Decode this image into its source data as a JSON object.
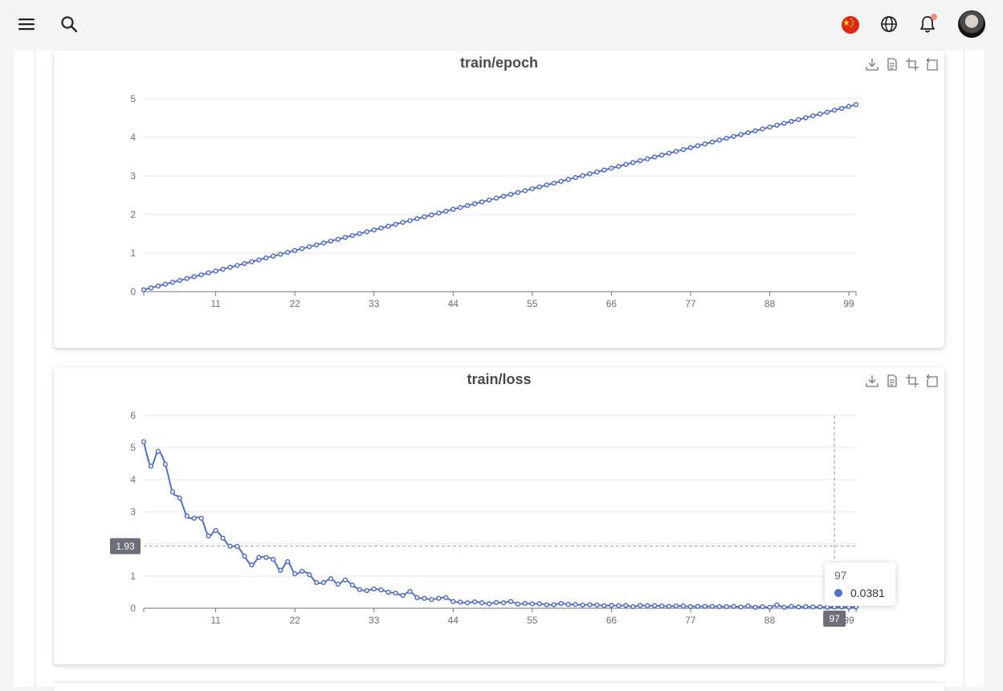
{
  "colors": {
    "series": "#5470c6",
    "axis": "#6e7079",
    "grid": "#e0e6f1"
  },
  "topbar": {
    "icons": [
      "menu-icon",
      "search-icon",
      "china-flag-icon",
      "globe-icon",
      "bell-icon"
    ]
  },
  "tooltip": {
    "x": "97",
    "value": "0.0381"
  },
  "crosshair": {
    "y_label": "1.93",
    "x_label": "97"
  },
  "chart_data": [
    {
      "type": "line",
      "title": "train/epoch",
      "xlim": [
        1,
        100
      ],
      "xticks": [
        11,
        22,
        33,
        44,
        55,
        66,
        77,
        88,
        99
      ],
      "ylim": [
        0,
        5
      ],
      "yticks": [
        0,
        1,
        2,
        3,
        4,
        5
      ],
      "grid": true,
      "series": [
        {
          "x": [
            1,
            100
          ],
          "values": [
            0.05,
            4.85
          ],
          "x_step": 1
        }
      ]
    },
    {
      "type": "line",
      "title": "train/loss",
      "xlim": [
        1,
        100
      ],
      "xticks": [
        11,
        22,
        33,
        44,
        55,
        66,
        77,
        88,
        99
      ],
      "ylim": [
        0,
        6
      ],
      "yticks": [
        0,
        1,
        2,
        3,
        4,
        5,
        6
      ],
      "grid": true,
      "series": [
        {
          "x_start": 1,
          "x_step": 1,
          "values": [
            5.18,
            4.42,
            4.88,
            4.48,
            3.62,
            3.43,
            2.87,
            2.8,
            2.8,
            2.25,
            2.42,
            2.18,
            1.93,
            1.92,
            1.62,
            1.35,
            1.58,
            1.58,
            1.52,
            1.18,
            1.45,
            1.07,
            1.15,
            1.05,
            0.8,
            0.8,
            0.92,
            0.75,
            0.88,
            0.72,
            0.58,
            0.55,
            0.6,
            0.57,
            0.5,
            0.47,
            0.4,
            0.52,
            0.33,
            0.31,
            0.27,
            0.31,
            0.33,
            0.21,
            0.19,
            0.17,
            0.2,
            0.17,
            0.14,
            0.18,
            0.17,
            0.21,
            0.13,
            0.15,
            0.14,
            0.14,
            0.11,
            0.11,
            0.15,
            0.12,
            0.12,
            0.1,
            0.11,
            0.1,
            0.08,
            0.09,
            0.08,
            0.09,
            0.05,
            0.09,
            0.08,
            0.08,
            0.07,
            0.06,
            0.07,
            0.07,
            0.05,
            0.06,
            0.06,
            0.06,
            0.05,
            0.05,
            0.06,
            0.04,
            0.07,
            0.03,
            0.05,
            0.03,
            0.1,
            0.03,
            0.06,
            0.04,
            0.05,
            0.04,
            0.04,
            0.03,
            0.0381,
            0.04,
            0.03,
            0.04
          ]
        }
      ]
    }
  ]
}
